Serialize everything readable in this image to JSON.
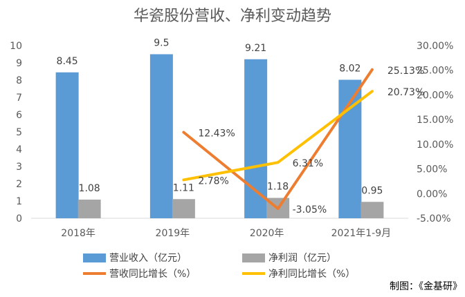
{
  "chart_data": {
    "type": "bar",
    "title": "华瓷股份营收、净利变动趋势",
    "categories": [
      "2018年",
      "2019年",
      "2020年",
      "2021年1-9月"
    ],
    "y_left": {
      "ylim": [
        0,
        10
      ],
      "ticks": [
        "0",
        "1",
        "2",
        "3",
        "4",
        "5",
        "6",
        "7",
        "8",
        "9",
        "10"
      ]
    },
    "y_right": {
      "ylim": [
        -5,
        30
      ],
      "ticks": [
        "-5.00%",
        "0.00%",
        "5.00%",
        "10.00%",
        "15.00%",
        "20.00%",
        "25.00%",
        "30.00%"
      ]
    },
    "series": [
      {
        "name": "营业收入（亿元）",
        "kind": "bar",
        "axis": "left",
        "color": "#5B9BD5",
        "values": [
          8.45,
          9.5,
          9.21,
          8.02
        ],
        "labels": [
          "8.45",
          "9.5",
          "9.21",
          "8.02"
        ]
      },
      {
        "name": "净利润（亿元）",
        "kind": "bar",
        "axis": "left",
        "color": "#A5A5A5",
        "values": [
          1.08,
          1.11,
          1.18,
          0.95
        ],
        "labels": [
          "1.08",
          "1.11",
          "1.18",
          "0.95"
        ]
      },
      {
        "name": "营收同比增长（%）",
        "kind": "line",
        "axis": "right",
        "color": "#ED7D31",
        "values": [
          null,
          12.43,
          -3.05,
          25.13
        ],
        "labels": [
          "",
          "12.43%",
          "-3.05%",
          "25.13%"
        ]
      },
      {
        "name": "净利同比增长（%）",
        "kind": "line",
        "axis": "right",
        "color": "#FFC000",
        "values": [
          null,
          2.78,
          6.31,
          20.73
        ],
        "labels": [
          "",
          "2.78%",
          "6.31%",
          "20.73%"
        ]
      }
    ],
    "grid": false,
    "legend_position": "bottom"
  },
  "credit": "制图：《金基研》"
}
